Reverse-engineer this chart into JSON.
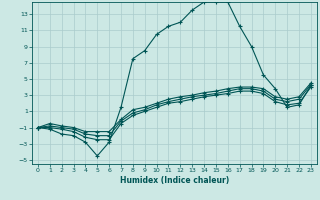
{
  "xlabel": "Humidex (Indice chaleur)",
  "bg_color": "#cce8e4",
  "grid_color": "#aacccc",
  "line_color": "#005555",
  "xlim": [
    -0.5,
    23.5
  ],
  "ylim": [
    -5.5,
    14.5
  ],
  "yticks": [
    -5,
    -3,
    -1,
    1,
    3,
    5,
    7,
    9,
    11,
    13
  ],
  "xticks": [
    0,
    1,
    2,
    3,
    4,
    5,
    6,
    7,
    8,
    9,
    10,
    11,
    12,
    13,
    14,
    15,
    16,
    17,
    18,
    19,
    20,
    21,
    22,
    23
  ],
  "x": [
    0,
    1,
    2,
    3,
    4,
    5,
    6,
    7,
    8,
    9,
    10,
    11,
    12,
    13,
    14,
    15,
    16,
    17,
    18,
    19,
    20,
    21,
    22,
    23
  ],
  "y_main": [
    -1,
    -1.2,
    -1.8,
    -2.0,
    -2.8,
    -4.5,
    -2.8,
    1.5,
    7.5,
    8.5,
    10.5,
    11.5,
    12.0,
    13.5,
    14.5,
    14.5,
    14.5,
    11.5,
    9.0,
    5.5,
    3.8,
    1.5,
    1.8,
    4.2
  ],
  "y_line2": [
    -1,
    -1,
    -1.2,
    -1.5,
    -2.2,
    -2.5,
    -2.5,
    -0.5,
    0.5,
    1.0,
    1.5,
    2.0,
    2.2,
    2.5,
    2.8,
    3.0,
    3.2,
    3.5,
    3.5,
    3.2,
    2.2,
    1.8,
    2.0,
    4.0
  ],
  "y_line3": [
    -1,
    -0.8,
    -1.0,
    -1.2,
    -1.8,
    -2.0,
    -2.0,
    -0.2,
    0.8,
    1.2,
    1.8,
    2.2,
    2.5,
    2.8,
    3.0,
    3.2,
    3.5,
    3.8,
    3.8,
    3.5,
    2.5,
    2.2,
    2.5,
    4.3
  ],
  "y_line4": [
    -1,
    -0.5,
    -0.8,
    -1.0,
    -1.5,
    -1.5,
    -1.5,
    0.0,
    1.2,
    1.5,
    2.0,
    2.5,
    2.8,
    3.0,
    3.3,
    3.5,
    3.8,
    4.0,
    4.0,
    3.8,
    2.8,
    2.5,
    2.8,
    4.5
  ]
}
